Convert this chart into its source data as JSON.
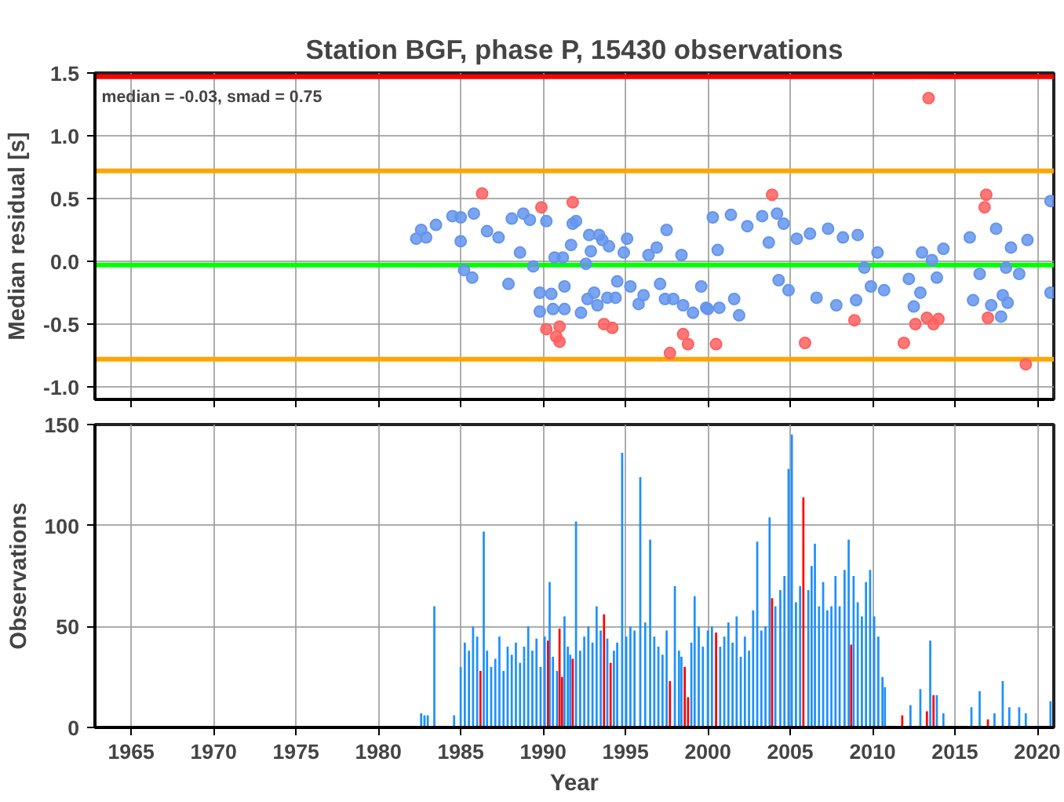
{
  "chart_data": [
    {
      "type": "scatter",
      "title": "Station BGF, phase P, 15430 observations",
      "ylabel": "Median residual [s]",
      "xlim": [
        1962.8,
        2021.0
      ],
      "ylim": [
        -1.1,
        1.5
      ],
      "xticks": [
        1965,
        1970,
        1975,
        1980,
        1985,
        1990,
        1995,
        2000,
        2005,
        2010,
        2015,
        2020
      ],
      "yticks": [
        {
          "value": -1.0,
          "label": "-1.0"
        },
        {
          "value": -0.5,
          "label": "-0.5"
        },
        {
          "value": 0.0,
          "label": "0.0"
        },
        {
          "value": 0.5,
          "label": "0.5"
        },
        {
          "value": 1.0,
          "label": "1.0"
        },
        {
          "value": 1.5,
          "label": "1.5"
        }
      ],
      "tick_labels": "y",
      "grid": true,
      "marker": "circle",
      "annotations": [
        "median = -0.03, smad = 0.75"
      ],
      "ref_lines": [
        {
          "axis": "y",
          "value": 1.47,
          "color": "#ff0000"
        },
        {
          "axis": "y",
          "value": 0.72,
          "color": "#ffa500"
        },
        {
          "axis": "y",
          "value": -0.03,
          "color": "#00ff00"
        },
        {
          "axis": "y",
          "value": -0.78,
          "color": "#ffa500"
        }
      ],
      "series": [
        {
          "color": "#6495ed",
          "x": [
            1982.3,
            1982.6,
            1982.9,
            1983.5,
            1984.5,
            1985.0,
            1985.8,
            1985.0,
            1985.2,
            1985.7,
            1986.6,
            1987.3,
            1987.9,
            1988.1,
            1988.8,
            1989.2,
            1988.6,
            1989.4,
            1989.8,
            1990.2,
            1989.8,
            1990.5,
            1990.7,
            1991.2,
            1991.3,
            1990.6,
            1991.3,
            1991.8,
            1992.0,
            1991.7,
            1992.3,
            1992.8,
            1992.9,
            1992.6,
            1992.7,
            1993.1,
            1993.4,
            1993.6,
            1994.0,
            1993.3,
            1993.9,
            1994.4,
            1994.5,
            1994.9,
            1995.1,
            1995.3,
            1995.8,
            1996.1,
            1996.4,
            1996.9,
            1997.1,
            1997.4,
            1997.5,
            1997.9,
            1998.4,
            1998.5,
            1999.1,
            1999.6,
            2000.0,
            2000.3,
            2000.6,
            2001.4,
            1999.9,
            2000.7,
            2001.9,
            2001.6,
            2002.4,
            2003.3,
            2004.2,
            2004.6,
            2003.7,
            2004.3,
            2004.9,
            2005.4,
            2006.2,
            2006.6,
            2007.3,
            2007.8,
            2008.2,
            2009.1,
            2009.0,
            2009.5,
            2009.9,
            2010.3,
            2010.7,
            2012.2,
            2012.5,
            2012.9,
            2013.0,
            2013.6,
            2014.3,
            2013.9,
            2015.9,
            2016.1,
            2016.5,
            2017.2,
            2017.5,
            2017.8,
            2017.9,
            2018.1,
            2018.2,
            2018.4,
            2018.9,
            2019.4,
            2020.8,
            2020.8
          ],
          "values": [
            0.18,
            0.25,
            0.19,
            0.29,
            0.36,
            0.35,
            0.38,
            0.16,
            -0.07,
            -0.13,
            0.24,
            0.19,
            -0.18,
            0.34,
            0.38,
            0.33,
            0.07,
            -0.04,
            -0.4,
            0.32,
            -0.25,
            -0.26,
            0.03,
            0.03,
            -0.2,
            -0.38,
            -0.38,
            0.3,
            0.32,
            0.13,
            -0.41,
            0.21,
            0.08,
            -0.02,
            -0.3,
            -0.25,
            0.21,
            0.17,
            0.12,
            -0.35,
            -0.29,
            -0.29,
            -0.16,
            0.07,
            0.18,
            -0.2,
            -0.34,
            -0.27,
            0.05,
            0.11,
            -0.18,
            -0.3,
            0.25,
            -0.3,
            0.05,
            -0.35,
            -0.41,
            -0.2,
            -0.38,
            0.35,
            0.09,
            0.37,
            -0.37,
            -0.37,
            -0.43,
            -0.3,
            0.28,
            0.36,
            0.38,
            0.3,
            0.15,
            -0.15,
            -0.23,
            0.18,
            0.22,
            -0.29,
            0.26,
            -0.35,
            0.19,
            0.21,
            -0.31,
            -0.05,
            -0.2,
            0.07,
            -0.23,
            -0.14,
            -0.36,
            -0.25,
            0.07,
            0.01,
            0.1,
            -0.13,
            0.19,
            -0.31,
            -0.1,
            -0.35,
            0.26,
            -0.44,
            -0.27,
            -0.05,
            -0.33,
            0.11,
            -0.1,
            0.17,
            0.48,
            -0.25
          ]
        },
        {
          "color": "#ff6060",
          "x": [
            1986.3,
            1989.9,
            1991.8,
            1990.2,
            1991.0,
            1990.8,
            1991.0,
            1993.7,
            1994.2,
            1997.7,
            1998.5,
            1998.8,
            2000.5,
            2013.4,
            2003.9,
            2016.9,
            2016.8,
            2008.9,
            2005.9,
            2011.9,
            2012.6,
            2013.3,
            2014.0,
            2013.7,
            2017.0,
            2019.3
          ],
          "values": [
            0.54,
            0.43,
            0.47,
            -0.54,
            -0.52,
            -0.6,
            -0.64,
            -0.5,
            -0.53,
            -0.73,
            -0.58,
            -0.66,
            -0.66,
            1.3,
            0.53,
            0.53,
            0.43,
            -0.47,
            -0.65,
            -0.65,
            -0.5,
            -0.45,
            -0.46,
            -0.5,
            -0.45,
            -0.82
          ]
        }
      ]
    },
    {
      "type": "bar",
      "xlabel": "Year",
      "ylabel": "Observations",
      "xlim": [
        1962.8,
        2021.0
      ],
      "ylim": [
        0,
        150
      ],
      "xticks": [
        1965,
        1970,
        1975,
        1980,
        1985,
        1990,
        1995,
        2000,
        2005,
        2010,
        2015,
        2020
      ],
      "yticks": [
        0,
        50,
        100,
        150
      ],
      "grid": true,
      "series": [
        {
          "color": "#1e90ff",
          "x": [
            1982.6,
            1982.8,
            1983.0,
            1983.4,
            1984.6,
            1985.0,
            1985.25,
            1985.5,
            1985.75,
            1986.0,
            1986.4,
            1986.6,
            1986.85,
            1987.1,
            1987.35,
            1987.6,
            1987.85,
            1988.1,
            1988.35,
            1988.6,
            1988.85,
            1989.1,
            1989.35,
            1989.6,
            1989.85,
            1990.1,
            1990.4,
            1990.6,
            1990.85,
            1991.3,
            1991.5,
            1991.65,
            1992.0,
            1992.25,
            1992.5,
            1992.75,
            1993.0,
            1993.25,
            1993.5,
            1993.9,
            1994.3,
            1994.5,
            1994.8,
            1995.05,
            1995.3,
            1995.55,
            1995.9,
            1996.2,
            1996.5,
            1996.75,
            1997.0,
            1997.25,
            1997.5,
            1998.0,
            1998.25,
            1998.4,
            1999.0,
            1999.2,
            1999.45,
            1999.7,
            2000.0,
            2000.25,
            2000.75,
            2001.0,
            2001.25,
            2001.5,
            2001.75,
            2002.0,
            2002.25,
            2002.5,
            2002.75,
            2003.0,
            2003.25,
            2003.5,
            2003.75,
            2004.1,
            2004.4,
            2004.65,
            2004.9,
            2005.1,
            2005.35,
            2005.6,
            2006.1,
            2006.3,
            2006.5,
            2006.75,
            2007.0,
            2007.25,
            2007.5,
            2007.75,
            2008.0,
            2008.3,
            2008.55,
            2008.85,
            2009.1,
            2009.35,
            2009.6,
            2009.85,
            2010.1,
            2010.35,
            2010.6,
            2010.75,
            2012.3,
            2012.9,
            2013.5,
            2013.9,
            2014.3,
            2016.0,
            2016.5,
            2017.4,
            2017.9,
            2018.3,
            2018.9,
            2019.3,
            2020.8
          ],
          "values": [
            7,
            6,
            6,
            60,
            6,
            30,
            42,
            38,
            50,
            45,
            97,
            38,
            30,
            34,
            45,
            28,
            40,
            36,
            42,
            32,
            40,
            50,
            38,
            44,
            30,
            45,
            72,
            35,
            28,
            55,
            40,
            36,
            102,
            38,
            45,
            50,
            42,
            60,
            48,
            44,
            38,
            42,
            136,
            45,
            50,
            48,
            124,
            52,
            93,
            45,
            40,
            36,
            48,
            70,
            38,
            35,
            42,
            65,
            50,
            40,
            48,
            50,
            40,
            45,
            52,
            42,
            55,
            35,
            45,
            38,
            58,
            92,
            48,
            50,
            104,
            60,
            68,
            75,
            128,
            145,
            62,
            70,
            68,
            80,
            91,
            60,
            72,
            58,
            60,
            75,
            60,
            78,
            93,
            75,
            62,
            55,
            72,
            78,
            55,
            45,
            25,
            20,
            11,
            19,
            43,
            16,
            7,
            10,
            18,
            7,
            23,
            10,
            10,
            7,
            13
          ]
        },
        {
          "color": "#ff0000",
          "x": [
            1986.2,
            1990.3,
            1991.0,
            1991.15,
            1991.8,
            1993.7,
            1994.1,
            1997.7,
            1998.6,
            1998.8,
            2000.5,
            2003.9,
            2005.8,
            2008.7,
            2011.8,
            2013.3,
            2013.7,
            2017.0
          ],
          "values": [
            28,
            43,
            49,
            25,
            34,
            56,
            32,
            23,
            30,
            15,
            47,
            64,
            114,
            41,
            6,
            8,
            16,
            4
          ]
        }
      ]
    }
  ]
}
